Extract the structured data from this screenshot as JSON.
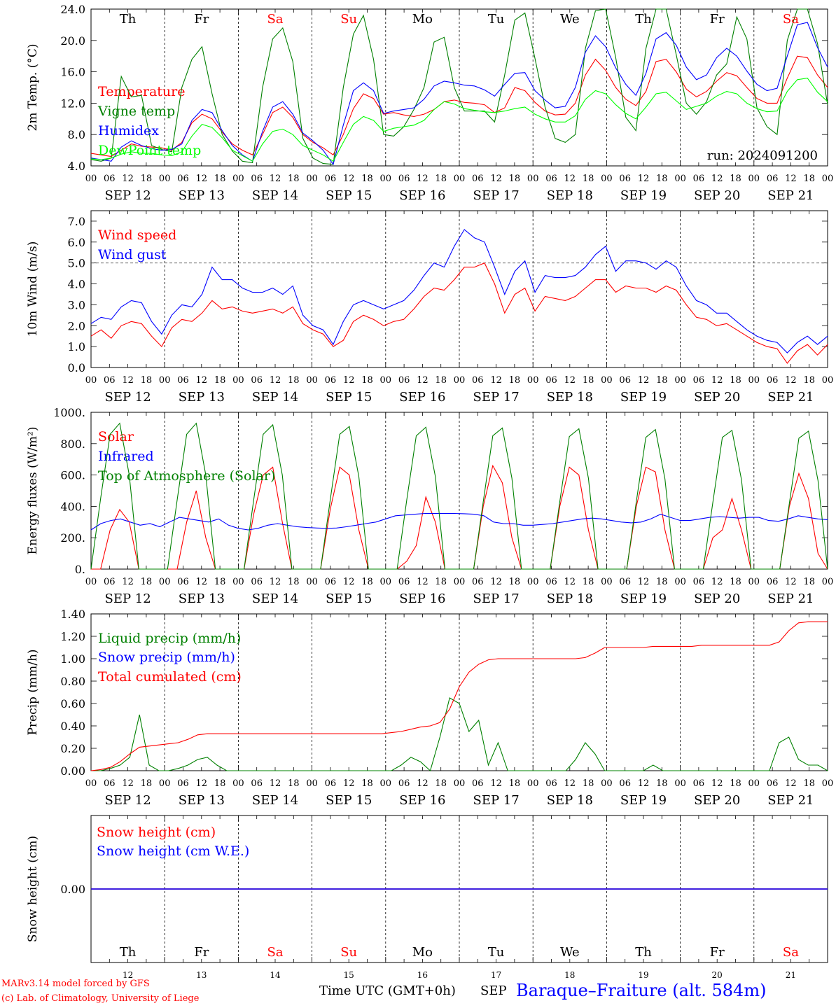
{
  "chart_data": [
    {
      "type": "line",
      "ylabel": "2m Temp. (°C)",
      "ylim": [
        4,
        24
      ],
      "yticks": [
        "4.0",
        "8.0",
        "12.0",
        "16.0",
        "20.0",
        "24.0"
      ],
      "legend_placement": "left",
      "annotation": "run: 2024091200",
      "series": [
        {
          "name": "Temperature",
          "color": "#ff0000",
          "values": [
            5.6,
            5.4,
            5.2,
            6.0,
            6.8,
            6.5,
            6.4,
            6.3,
            6.0,
            7.0,
            9.5,
            10.6,
            10.0,
            8.3,
            6.8,
            6.0,
            5.4,
            8.0,
            10.8,
            11.5,
            10.2,
            8.0,
            7.0,
            6.3,
            5.4,
            8.0,
            11.3,
            13.2,
            12.6,
            10.6,
            10.8,
            10.5,
            10.3,
            10.6,
            11.2,
            12.2,
            12.4,
            12.1,
            12.0,
            11.8,
            10.8,
            11.4,
            14.0,
            13.6,
            12.1,
            11.0,
            10.5,
            10.6,
            12.0,
            15.6,
            17.6,
            16.2,
            14.0,
            12.5,
            11.7,
            13.5,
            17.3,
            17.6,
            16.0,
            13.8,
            12.8,
            13.5,
            14.8,
            15.9,
            15.5,
            14.0,
            12.6,
            12.0,
            12.0,
            15.2,
            18.0,
            17.8,
            15.6,
            14.0
          ]
        },
        {
          "name": "Vigne temp",
          "color": "#008000",
          "values": [
            4.8,
            4.6,
            5.0,
            15.4,
            12.8,
            13.0,
            6.6,
            6.1,
            5.8,
            14.0,
            17.6,
            19.2,
            13.2,
            8.0,
            5.9,
            4.6,
            4.4,
            14.0,
            20.2,
            21.6,
            17.3,
            7.5,
            5.0,
            4.3,
            4.2,
            14.0,
            20.8,
            23.2,
            17.6,
            8.0,
            7.8,
            9.0,
            11.2,
            14.0,
            19.8,
            20.4,
            14.0,
            11.0,
            11.0,
            11.0,
            9.6,
            15.6,
            22.6,
            23.5,
            17.7,
            11.5,
            7.5,
            7.0,
            8.0,
            19.0,
            23.8,
            24.0,
            17.8,
            10.2,
            8.5,
            19.0,
            24.0,
            24.0,
            18.2,
            12.0,
            10.6,
            12.2,
            15.6,
            17.0,
            23.0,
            20.2,
            11.4,
            9.0,
            8.0,
            20.0,
            24.0,
            24.0,
            19.6,
            11.8
          ]
        },
        {
          "name": "Humidex",
          "color": "#0000ff",
          "values": [
            5.0,
            4.8,
            4.6,
            6.4,
            7.2,
            6.6,
            6.2,
            6.0,
            6.1,
            6.8,
            9.8,
            11.2,
            10.8,
            8.5,
            6.6,
            5.4,
            4.6,
            8.4,
            11.5,
            12.2,
            10.6,
            8.2,
            7.2,
            6.0,
            4.2,
            9.2,
            13.6,
            14.6,
            13.6,
            10.7,
            11.0,
            11.2,
            11.4,
            12.5,
            14.2,
            14.8,
            14.6,
            14.3,
            14.2,
            13.7,
            12.9,
            14.4,
            15.8,
            15.9,
            13.6,
            12.4,
            11.4,
            11.6,
            14.0,
            18.5,
            20.6,
            19.2,
            16.5,
            14.4,
            13.0,
            15.8,
            20.2,
            21.0,
            19.4,
            16.6,
            15.0,
            15.6,
            17.8,
            19.0,
            18.0,
            16.1,
            14.4,
            13.6,
            13.9,
            18.0,
            22.0,
            22.3,
            19.1,
            16.6
          ]
        },
        {
          "name": "DewPoint temp",
          "color": "#00ff00",
          "values": [
            4.9,
            4.8,
            5.0,
            5.5,
            5.8,
            5.6,
            5.6,
            5.4,
            5.3,
            5.8,
            7.8,
            9.3,
            8.9,
            7.6,
            6.0,
            5.3,
            4.6,
            6.8,
            8.4,
            8.7,
            8.0,
            6.6,
            6.0,
            5.4,
            4.6,
            7.0,
            9.3,
            10.3,
            9.8,
            8.4,
            8.8,
            9.0,
            9.2,
            9.8,
            11.2,
            12.2,
            11.9,
            11.3,
            11.1,
            10.9,
            10.8,
            11.0,
            11.3,
            11.5,
            10.6,
            10.0,
            9.6,
            9.6,
            10.4,
            12.5,
            13.6,
            13.2,
            11.8,
            10.7,
            10.0,
            11.5,
            13.2,
            13.4,
            12.3,
            11.2,
            11.6,
            12.0,
            12.9,
            13.5,
            13.2,
            12.0,
            11.3,
            10.9,
            11.0,
            13.5,
            15.0,
            15.2,
            13.4,
            12.2
          ]
        }
      ]
    },
    {
      "type": "line",
      "ylabel": "10m Wind (m/s)",
      "ylim": [
        0,
        7.5
      ],
      "yticks": [
        "0.0",
        "1.0",
        "2.0",
        "3.0",
        "4.0",
        "5.0",
        "6.0",
        "7.0"
      ],
      "reference_line": 5.0,
      "legend_placement": "left",
      "series": [
        {
          "name": "Wind speed",
          "color": "#ff0000",
          "values": [
            1.5,
            1.8,
            1.4,
            2.0,
            2.2,
            2.1,
            1.5,
            1.0,
            1.9,
            2.3,
            2.2,
            2.6,
            3.2,
            2.8,
            2.9,
            2.7,
            2.6,
            2.7,
            2.8,
            2.6,
            2.9,
            2.1,
            1.8,
            1.6,
            1.0,
            1.3,
            2.2,
            2.5,
            2.3,
            2.0,
            2.2,
            2.3,
            2.8,
            3.4,
            3.8,
            3.7,
            4.2,
            4.8,
            4.8,
            5.0,
            4.0,
            2.6,
            3.5,
            3.8,
            2.7,
            3.4,
            3.3,
            3.2,
            3.4,
            3.8,
            4.2,
            4.2,
            3.6,
            3.9,
            3.8,
            3.8,
            3.6,
            3.9,
            3.7,
            3.0,
            2.4,
            2.3,
            2.0,
            2.1,
            1.8,
            1.5,
            1.2,
            1.0,
            0.9,
            0.2,
            0.8,
            1.1,
            0.6,
            1.1
          ]
        },
        {
          "name": "Wind gust",
          "color": "#0000ff",
          "values": [
            2.1,
            2.4,
            2.3,
            2.9,
            3.2,
            3.1,
            2.2,
            1.6,
            2.5,
            3.0,
            2.9,
            3.5,
            4.8,
            4.2,
            4.2,
            3.8,
            3.6,
            3.6,
            3.8,
            3.5,
            3.9,
            2.5,
            2.0,
            1.8,
            1.1,
            2.2,
            3.0,
            3.2,
            3.0,
            2.8,
            3.0,
            3.2,
            3.7,
            4.4,
            5.0,
            4.8,
            5.8,
            6.6,
            6.2,
            6.0,
            4.8,
            3.5,
            4.6,
            5.1,
            3.6,
            4.4,
            4.3,
            4.3,
            4.4,
            4.8,
            5.4,
            5.8,
            4.6,
            5.1,
            5.1,
            5.0,
            4.7,
            5.1,
            4.8,
            3.9,
            3.2,
            3.0,
            2.6,
            2.6,
            2.2,
            1.8,
            1.5,
            1.3,
            1.2,
            0.7,
            1.2,
            1.5,
            1.1,
            1.5
          ]
        }
      ]
    },
    {
      "type": "line",
      "ylabel": "Energy fluxes (W/m²)",
      "ylim": [
        0,
        1000
      ],
      "yticks": [
        "0.",
        "200.",
        "400.",
        "600.",
        "800.",
        "1000."
      ],
      "legend_placement": "left",
      "series": [
        {
          "name": "Solar",
          "color": "#ff0000",
          "values": [
            0,
            0,
            250,
            380,
            300,
            0,
            0,
            0,
            0,
            0,
            300,
            500,
            200,
            0,
            0,
            0,
            0,
            350,
            600,
            650,
            300,
            0,
            0,
            0,
            0,
            380,
            650,
            600,
            250,
            0,
            0,
            0,
            0,
            50,
            150,
            460,
            300,
            0,
            0,
            0,
            0,
            400,
            660,
            550,
            200,
            0,
            0,
            0,
            0,
            400,
            650,
            600,
            250,
            0,
            0,
            0,
            0,
            400,
            650,
            620,
            250,
            0,
            0,
            0,
            0,
            200,
            250,
            450,
            250,
            0,
            0,
            0,
            0,
            400,
            610,
            450,
            100,
            0
          ]
        },
        {
          "name": "Infrared",
          "color": "#0000ff",
          "values": [
            250,
            290,
            310,
            320,
            300,
            280,
            290,
            270,
            300,
            330,
            320,
            310,
            300,
            320,
            280,
            260,
            250,
            260,
            280,
            290,
            280,
            270,
            265,
            262,
            260,
            262,
            270,
            280,
            290,
            300,
            320,
            340,
            345,
            350,
            355,
            355,
            355,
            355,
            353,
            350,
            340,
            300,
            290,
            290,
            280,
            280,
            285,
            290,
            300,
            310,
            320,
            325,
            320,
            310,
            300,
            295,
            300,
            320,
            350,
            330,
            310,
            310,
            320,
            330,
            335,
            330,
            325,
            330,
            330,
            310,
            305,
            320,
            340,
            330,
            320,
            315
          ]
        },
        {
          "name": "Top of Atmosphere (Solar)",
          "color": "#008000",
          "values": [
            0,
            450,
            860,
            930,
            600,
            0,
            0,
            0,
            0,
            440,
            860,
            930,
            600,
            0,
            0,
            0,
            0,
            440,
            860,
            920,
            600,
            0,
            0,
            0,
            0,
            440,
            860,
            910,
            590,
            0,
            0,
            0,
            0,
            440,
            850,
            905,
            590,
            0,
            0,
            0,
            0,
            430,
            850,
            900,
            580,
            0,
            0,
            0,
            0,
            430,
            845,
            895,
            580,
            0,
            0,
            0,
            0,
            430,
            840,
            890,
            575,
            0,
            0,
            0,
            0,
            425,
            840,
            885,
            570,
            0,
            0,
            0,
            0,
            420,
            835,
            880,
            565,
            0
          ]
        }
      ]
    },
    {
      "type": "line",
      "ylabel": "Precip (mm/h)",
      "ylim": [
        0,
        1.4
      ],
      "yticks": [
        "0.00",
        "0.20",
        "0.40",
        "0.60",
        "0.80",
        "1.00",
        "1.20",
        "1.40"
      ],
      "legend_placement": "left",
      "series": [
        {
          "name": "Liquid precip (mm/h)",
          "color": "#008000",
          "values": [
            0,
            0,
            0.02,
            0.05,
            0.12,
            0.5,
            0.05,
            0,
            0,
            0.02,
            0.05,
            0.1,
            0.12,
            0.05,
            0,
            0,
            0,
            0,
            0,
            0,
            0,
            0,
            0,
            0,
            0,
            0,
            0,
            0,
            0,
            0,
            0,
            0,
            0.05,
            0.12,
            0.08,
            0,
            0.3,
            0.65,
            0.6,
            0.35,
            0.45,
            0.05,
            0.25,
            0,
            0,
            0,
            0,
            0,
            0,
            0,
            0.1,
            0.25,
            0.15,
            0,
            0,
            0,
            0,
            0,
            0.05,
            0,
            0,
            0,
            0,
            0,
            0,
            0,
            0,
            0,
            0,
            0,
            0,
            0.25,
            0.3,
            0.1,
            0.05,
            0.05,
            0
          ]
        },
        {
          "name": "Snow precip (mm/h)",
          "color": "#0000ff",
          "values": []
        },
        {
          "name": "Total cumulated (cm)",
          "color": "#ff0000",
          "values": [
            0,
            0.01,
            0.03,
            0.08,
            0.15,
            0.21,
            0.22,
            0.23,
            0.24,
            0.25,
            0.28,
            0.32,
            0.33,
            0.33,
            0.33,
            0.33,
            0.33,
            0.33,
            0.33,
            0.33,
            0.33,
            0.33,
            0.33,
            0.33,
            0.33,
            0.33,
            0.33,
            0.33,
            0.33,
            0.33,
            0.33,
            0.34,
            0.35,
            0.37,
            0.39,
            0.4,
            0.43,
            0.55,
            0.75,
            0.88,
            0.95,
            0.99,
            1.0,
            1.0,
            1.0,
            1.0,
            1.0,
            1.0,
            1.0,
            1.0,
            1.0,
            1.01,
            1.05,
            1.1,
            1.1,
            1.1,
            1.1,
            1.1,
            1.11,
            1.11,
            1.11,
            1.11,
            1.11,
            1.12,
            1.12,
            1.12,
            1.12,
            1.12,
            1.12,
            1.12,
            1.12,
            1.15,
            1.25,
            1.32,
            1.33,
            1.33,
            1.33
          ]
        }
      ]
    },
    {
      "type": "line",
      "ylabel": "Snow height (cm)",
      "ylim": [
        -1,
        1
      ],
      "yticks": [
        "0.00"
      ],
      "legend_placement": "left",
      "series": [
        {
          "name": "Snow height (cm)",
          "color": "#ff0000",
          "values": [
            0,
            0
          ]
        },
        {
          "name": "Snow height (cm W.E.)",
          "color": "#0000ff",
          "values": [
            0,
            0
          ]
        }
      ]
    }
  ],
  "days": {
    "abbrev": [
      "Th",
      "Fr",
      "Sa",
      "Su",
      "Mo",
      "Tu",
      "We",
      "Th",
      "Fr",
      "Sa"
    ],
    "weekend_color": "#ff0000",
    "weekend": [
      false,
      false,
      true,
      true,
      false,
      false,
      false,
      false,
      false,
      true
    ],
    "dates": [
      "SEP 12",
      "SEP 13",
      "SEP 14",
      "SEP 15",
      "SEP 16",
      "SEP 17",
      "SEP 18",
      "SEP 19",
      "SEP 20",
      "SEP 21"
    ],
    "day_numbers": [
      "12",
      "13",
      "14",
      "15",
      "16",
      "17",
      "18",
      "19",
      "20",
      "21"
    ],
    "hour_labels": [
      "00",
      "06",
      "12",
      "18"
    ],
    "hour_end_label": "00"
  },
  "footer": {
    "model_line": "MARv3.14 model forced by GFS",
    "credit_line": "(c) Lab. of Climatology, University of Liege",
    "time_label": "Time UTC (GMT+0h)",
    "month_label": "SEP",
    "station": "Baraque–Fraiture (alt. 584m)"
  }
}
